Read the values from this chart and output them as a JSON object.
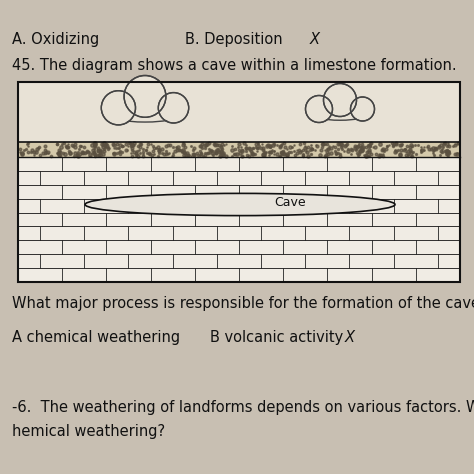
{
  "bg_color": "#c8bfb2",
  "title_line1": "A. Oxidizing",
  "title_line2": "B. Deposition",
  "title_line2_x": "#333333",
  "question_num": "45.",
  "question_text": " The diagram shows a cave within a limestone formation.",
  "question2_text": "What major process is responsible for the formation of the cave?",
  "answer_A": "A chemical weathering",
  "answer_B": "B volcanic activity",
  "answer_B_x": "X",
  "next_q": "-6.  The weathering of landforms depends on various factors. W",
  "next_q2": "hemical weathering?",
  "cave_label": "Cave",
  "brick_color": "#f0ece4",
  "brick_line_color": "#222222",
  "soil_color_light": "#d4c9aa",
  "soil_color_dark": "#8a7e65",
  "sky_color": "#e8e2d6",
  "cave_fill": "#e8e4dc",
  "diagram_border_color": "#111111",
  "text_color": "#111111",
  "font_size_main": 10.5,
  "font_size_q": 10.5,
  "font_size_small": 9.5
}
